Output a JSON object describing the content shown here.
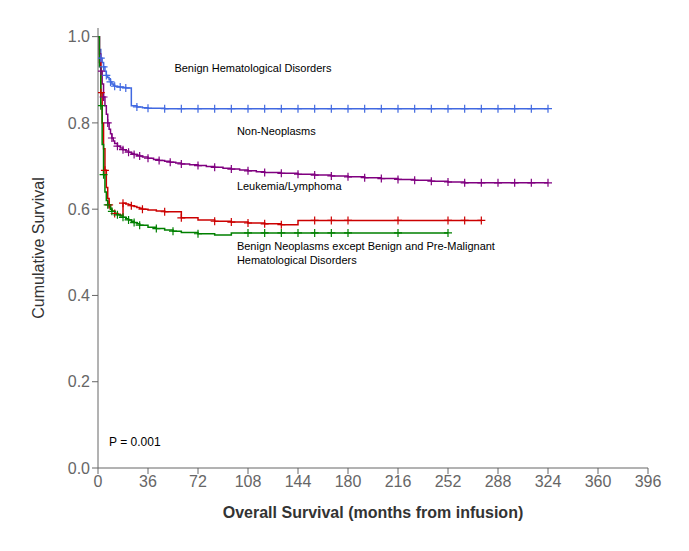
{
  "chart_data": {
    "type": "line",
    "line_style": "step",
    "marker": "plus",
    "grid": false,
    "xlabel": "Overall Survival (months from infusion)",
    "ylabel": "Cumulative Survival",
    "xlim": [
      0,
      396
    ],
    "ylim": [
      0.0,
      1.02
    ],
    "xticks": [
      0,
      36,
      72,
      108,
      144,
      180,
      216,
      252,
      288,
      324,
      360,
      396
    ],
    "yticks": [
      {
        "value": 0.0,
        "label": "0.0"
      },
      {
        "value": 0.2,
        "label": "0.2"
      },
      {
        "value": 0.4,
        "label": "0.4"
      },
      {
        "value": 0.6,
        "label": "0.6"
      },
      {
        "value": 0.8,
        "label": "0.8"
      },
      {
        "value": 1.0,
        "label": "1.0"
      }
    ],
    "annotations": [
      {
        "text": "P = 0.001",
        "x": 8,
        "y": 0.045
      }
    ],
    "series": [
      {
        "name": "Benign Hematological Disorders",
        "color": "#4169E1",
        "label_x": 55,
        "label_y": 0.912,
        "label_anchor": "bottom",
        "x": [
          0,
          1,
          2,
          3,
          4,
          5,
          6,
          7,
          8,
          9,
          10,
          11,
          12,
          14,
          16,
          18,
          20,
          24,
          28,
          32,
          36,
          48,
          60,
          72,
          84,
          96,
          108,
          120,
          132,
          144,
          156,
          168,
          180,
          216,
          252,
          288,
          324
        ],
        "values": [
          1.0,
          0.97,
          0.95,
          0.94,
          0.93,
          0.92,
          0.91,
          0.905,
          0.9,
          0.895,
          0.89,
          0.887,
          0.885,
          0.884,
          0.883,
          0.882,
          0.881,
          0.84,
          0.837,
          0.835,
          0.834,
          0.833,
          0.833,
          0.833,
          0.833,
          0.833,
          0.833,
          0.833,
          0.833,
          0.833,
          0.833,
          0.833,
          0.833,
          0.833,
          0.833,
          0.833,
          0.833
        ],
        "censor_x": [
          2,
          4,
          6,
          9,
          12,
          16,
          20,
          28,
          36,
          48,
          60,
          72,
          84,
          96,
          108,
          120,
          132,
          144,
          156,
          168,
          180,
          192,
          204,
          216,
          228,
          240,
          252,
          264,
          276,
          288,
          300,
          312,
          324
        ],
        "censor_y": [
          0.95,
          0.93,
          0.91,
          0.895,
          0.885,
          0.883,
          0.881,
          0.837,
          0.834,
          0.833,
          0.833,
          0.833,
          0.833,
          0.833,
          0.833,
          0.833,
          0.833,
          0.833,
          0.833,
          0.833,
          0.833,
          0.833,
          0.833,
          0.833,
          0.833,
          0.833,
          0.833,
          0.833,
          0.833,
          0.833,
          0.833,
          0.833,
          0.833
        ]
      },
      {
        "name": "Non-Neoplasms",
        "color": "#800080",
        "label_x": 100,
        "label_y": 0.765,
        "label_anchor": "bottom",
        "x": [
          0,
          1,
          2,
          3,
          4,
          5,
          6,
          7,
          8,
          9,
          10,
          11,
          12,
          14,
          16,
          18,
          20,
          22,
          24,
          26,
          28,
          30,
          32,
          36,
          40,
          44,
          48,
          52,
          56,
          60,
          66,
          72,
          78,
          84,
          90,
          96,
          102,
          108,
          114,
          120,
          132,
          144,
          156,
          168,
          180,
          192,
          204,
          216,
          228,
          240,
          252,
          264,
          276,
          288,
          300,
          312,
          324
        ],
        "values": [
          1.0,
          0.96,
          0.92,
          0.89,
          0.86,
          0.84,
          0.82,
          0.8,
          0.785,
          0.775,
          0.765,
          0.758,
          0.752,
          0.746,
          0.742,
          0.738,
          0.735,
          0.732,
          0.729,
          0.727,
          0.725,
          0.723,
          0.721,
          0.718,
          0.715,
          0.713,
          0.711,
          0.709,
          0.707,
          0.705,
          0.703,
          0.701,
          0.699,
          0.697,
          0.695,
          0.693,
          0.691,
          0.689,
          0.687,
          0.685,
          0.683,
          0.681,
          0.679,
          0.677,
          0.675,
          0.673,
          0.671,
          0.669,
          0.667,
          0.665,
          0.663,
          0.661,
          0.661,
          0.661,
          0.661,
          0.661,
          0.661
        ],
        "censor_x": [
          2,
          4,
          7,
          10,
          14,
          18,
          22,
          26,
          30,
          36,
          44,
          52,
          60,
          72,
          84,
          96,
          108,
          120,
          132,
          144,
          156,
          168,
          180,
          192,
          204,
          216,
          228,
          240,
          252,
          264,
          276,
          288,
          300,
          312,
          324
        ],
        "censor_y": [
          0.92,
          0.86,
          0.8,
          0.765,
          0.746,
          0.738,
          0.732,
          0.727,
          0.723,
          0.718,
          0.713,
          0.709,
          0.705,
          0.701,
          0.697,
          0.693,
          0.689,
          0.685,
          0.683,
          0.681,
          0.679,
          0.677,
          0.675,
          0.673,
          0.671,
          0.669,
          0.667,
          0.665,
          0.663,
          0.661,
          0.661,
          0.661,
          0.661,
          0.661,
          0.661
        ]
      },
      {
        "name": "Leukemia/Lymphoma",
        "color": "#CC0000",
        "label_x": 100,
        "label_y": 0.638,
        "label_anchor": "bottom",
        "x": [
          0,
          1,
          2,
          3,
          4,
          5,
          6,
          7,
          8,
          9,
          10,
          12,
          14,
          16,
          18,
          20,
          22,
          24,
          26,
          28,
          30,
          32,
          36,
          42,
          48,
          60,
          72,
          84,
          96,
          108,
          120,
          132,
          144,
          156,
          168,
          180,
          216,
          252,
          264,
          276
        ],
        "values": [
          1.0,
          0.94,
          0.87,
          0.8,
          0.74,
          0.69,
          0.65,
          0.625,
          0.61,
          0.6,
          0.595,
          0.59,
          0.588,
          0.586,
          0.614,
          0.612,
          0.61,
          0.608,
          0.606,
          0.604,
          0.602,
          0.6,
          0.598,
          0.596,
          0.594,
          0.58,
          0.575,
          0.572,
          0.57,
          0.568,
          0.566,
          0.564,
          0.574,
          0.574,
          0.574,
          0.574,
          0.574,
          0.574,
          0.574,
          0.574
        ],
        "censor_x": [
          2,
          5,
          8,
          12,
          18,
          24,
          32,
          48,
          60,
          84,
          96,
          108,
          120,
          132,
          156,
          168,
          180,
          216,
          252,
          264,
          276
        ],
        "censor_y": [
          0.87,
          0.69,
          0.61,
          0.59,
          0.614,
          0.608,
          0.6,
          0.594,
          0.58,
          0.572,
          0.57,
          0.568,
          0.566,
          0.564,
          0.574,
          0.574,
          0.574,
          0.574,
          0.574,
          0.574,
          0.574
        ]
      },
      {
        "name": "Benign Neoplasms except Benign and Pre-Malignant\nHematological Disorders",
        "color": "#008000",
        "label_x": 100,
        "label_y": 0.53,
        "label_anchor": "top",
        "x": [
          0,
          1,
          2,
          3,
          4,
          5,
          6,
          7,
          8,
          9,
          10,
          12,
          14,
          16,
          18,
          20,
          22,
          24,
          26,
          28,
          30,
          36,
          42,
          48,
          54,
          60,
          72,
          84,
          96,
          108,
          120,
          132,
          144,
          156,
          168,
          180,
          216,
          252
        ],
        "values": [
          1.0,
          0.93,
          0.84,
          0.75,
          0.68,
          0.64,
          0.62,
          0.61,
          0.605,
          0.6,
          0.595,
          0.59,
          0.587,
          0.584,
          0.581,
          0.578,
          0.575,
          0.572,
          0.569,
          0.566,
          0.563,
          0.558,
          0.555,
          0.552,
          0.549,
          0.546,
          0.543,
          0.54,
          0.545,
          0.545,
          0.545,
          0.545,
          0.545,
          0.545,
          0.545,
          0.545,
          0.545,
          0.545
        ],
        "censor_x": [
          2,
          4,
          7,
          10,
          14,
          18,
          22,
          26,
          30,
          42,
          54,
          72,
          108,
          120,
          132,
          144,
          156,
          168,
          180,
          216,
          252
        ],
        "censor_y": [
          0.84,
          0.68,
          0.61,
          0.595,
          0.587,
          0.581,
          0.575,
          0.569,
          0.563,
          0.555,
          0.549,
          0.543,
          0.545,
          0.545,
          0.545,
          0.545,
          0.545,
          0.545,
          0.545,
          0.545,
          0.545
        ]
      }
    ]
  }
}
